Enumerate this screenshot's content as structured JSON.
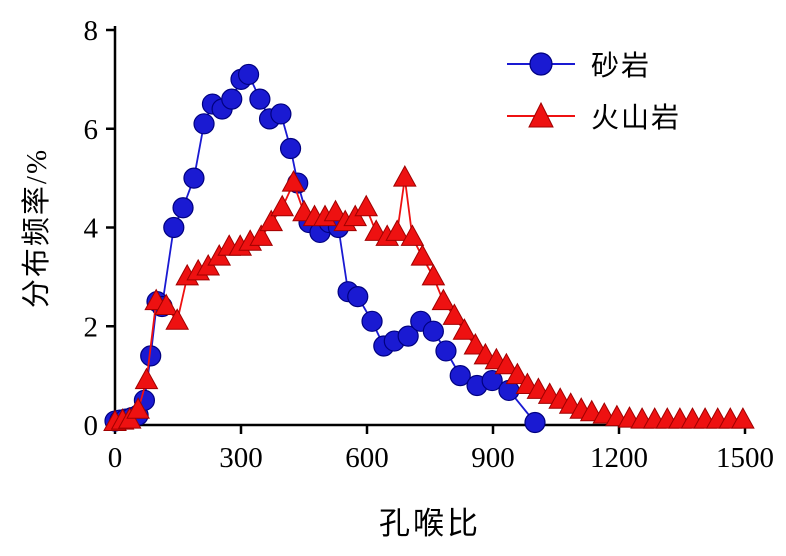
{
  "chart_data": {
    "type": "line",
    "title": "",
    "xlabel": "孔喉比",
    "ylabel": "分布频率/%",
    "xlim": [
      0,
      1500
    ],
    "ylim": [
      0,
      8
    ],
    "xticks": [
      0,
      300,
      600,
      900,
      1200,
      1500
    ],
    "yticks": [
      0,
      2,
      4,
      6,
      8
    ],
    "grid": false,
    "legend_position": "upper-right",
    "series": [
      {
        "name": "砂岩",
        "marker": "circle",
        "color": "#1a1ad2",
        "edge_color": "#000080",
        "points": [
          [
            0,
            0.08
          ],
          [
            12,
            0.1
          ],
          [
            25,
            0.12
          ],
          [
            40,
            0.15
          ],
          [
            55,
            0.2
          ],
          [
            70,
            0.5
          ],
          [
            85,
            1.4
          ],
          [
            100,
            2.5
          ],
          [
            112,
            2.4
          ],
          [
            140,
            4.0
          ],
          [
            162,
            4.4
          ],
          [
            188,
            5.0
          ],
          [
            212,
            6.1
          ],
          [
            232,
            6.5
          ],
          [
            255,
            6.4
          ],
          [
            278,
            6.6
          ],
          [
            300,
            7.0
          ],
          [
            318,
            7.1
          ],
          [
            345,
            6.6
          ],
          [
            368,
            6.2
          ],
          [
            395,
            6.3
          ],
          [
            418,
            5.6
          ],
          [
            435,
            4.9
          ],
          [
            462,
            4.1
          ],
          [
            488,
            3.9
          ],
          [
            510,
            4.1
          ],
          [
            532,
            4.0
          ],
          [
            555,
            2.7
          ],
          [
            578,
            2.6
          ],
          [
            612,
            2.1
          ],
          [
            640,
            1.6
          ],
          [
            665,
            1.7
          ],
          [
            698,
            1.8
          ],
          [
            728,
            2.1
          ],
          [
            758,
            1.9
          ],
          [
            788,
            1.5
          ],
          [
            822,
            1.0
          ],
          [
            862,
            0.8
          ],
          [
            898,
            0.9
          ],
          [
            938,
            0.7
          ],
          [
            1000,
            0.05
          ]
        ]
      },
      {
        "name": "火山岩",
        "marker": "triangle",
        "color": "#ee1111",
        "edge_color": "#a00000",
        "points": [
          [
            0,
            0.05
          ],
          [
            18,
            0.08
          ],
          [
            35,
            0.1
          ],
          [
            55,
            0.3
          ],
          [
            75,
            0.9
          ],
          [
            98,
            2.5
          ],
          [
            122,
            2.4
          ],
          [
            148,
            2.1
          ],
          [
            172,
            3.0
          ],
          [
            198,
            3.1
          ],
          [
            222,
            3.2
          ],
          [
            248,
            3.4
          ],
          [
            272,
            3.6
          ],
          [
            298,
            3.6
          ],
          [
            322,
            3.7
          ],
          [
            348,
            3.8
          ],
          [
            372,
            4.1
          ],
          [
            398,
            4.4
          ],
          [
            425,
            4.9
          ],
          [
            450,
            4.3
          ],
          [
            475,
            4.2
          ],
          [
            500,
            4.2
          ],
          [
            525,
            4.3
          ],
          [
            548,
            4.1
          ],
          [
            572,
            4.2
          ],
          [
            598,
            4.4
          ],
          [
            622,
            3.9
          ],
          [
            648,
            3.8
          ],
          [
            672,
            3.9
          ],
          [
            690,
            5.0
          ],
          [
            708,
            3.8
          ],
          [
            732,
            3.4
          ],
          [
            758,
            3.0
          ],
          [
            782,
            2.5
          ],
          [
            808,
            2.2
          ],
          [
            832,
            1.9
          ],
          [
            858,
            1.6
          ],
          [
            882,
            1.4
          ],
          [
            908,
            1.3
          ],
          [
            932,
            1.2
          ],
          [
            958,
            1.0
          ],
          [
            982,
            0.8
          ],
          [
            1008,
            0.7
          ],
          [
            1035,
            0.6
          ],
          [
            1060,
            0.5
          ],
          [
            1085,
            0.4
          ],
          [
            1110,
            0.3
          ],
          [
            1135,
            0.25
          ],
          [
            1165,
            0.2
          ],
          [
            1195,
            0.15
          ],
          [
            1225,
            0.12
          ],
          [
            1255,
            0.1
          ],
          [
            1285,
            0.1
          ],
          [
            1315,
            0.1
          ],
          [
            1345,
            0.1
          ],
          [
            1375,
            0.1
          ],
          [
            1405,
            0.1
          ],
          [
            1435,
            0.1
          ],
          [
            1465,
            0.1
          ],
          [
            1495,
            0.1
          ]
        ]
      }
    ],
    "axis_color": "#000000",
    "background": "#ffffff"
  }
}
